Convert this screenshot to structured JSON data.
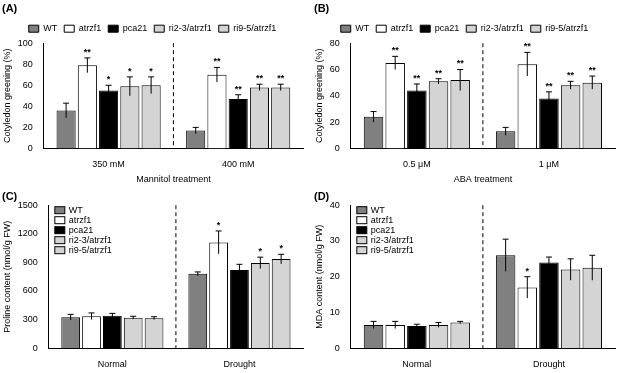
{
  "chart_data": [
    {
      "type": "bar",
      "title": "(A)",
      "xlabel": "Mannitol treatment",
      "ylabel": "Cotyledon greening (%)",
      "categories": [
        "350 mM",
        "400 mM"
      ],
      "series": [
        {
          "name": "WT",
          "color": "#808080",
          "values": [
            36,
            17
          ],
          "errors": [
            7,
            3
          ],
          "annotations": [
            null,
            null
          ]
        },
        {
          "name": "atrzf1",
          "color": "#ffffff",
          "values": [
            79,
            70
          ],
          "errors": [
            7,
            7
          ],
          "annotations": [
            "**",
            "**"
          ]
        },
        {
          "name": "pca21",
          "color": "#000000",
          "values": [
            55,
            47
          ],
          "errors": [
            5,
            4
          ],
          "annotations": [
            "*",
            "**"
          ]
        },
        {
          "name": "ri2-3/atrzf1",
          "color": "#d4d4d4",
          "values": [
            59,
            58
          ],
          "errors": [
            9,
            3
          ],
          "annotations": [
            "*",
            "**"
          ]
        },
        {
          "name": "ri9-5/atrzf1",
          "color": "#d4d4d4",
          "values": [
            60,
            58
          ],
          "errors": [
            8,
            3
          ],
          "annotations": [
            "*",
            "**"
          ]
        }
      ],
      "ylim": [
        0,
        100
      ],
      "yticks": [
        0,
        20,
        40,
        60,
        80,
        100
      ],
      "grid": false,
      "legend": "top"
    },
    {
      "type": "bar",
      "title": "(B)",
      "xlabel": "ABA treatment",
      "ylabel": "Cotyledon greening (%)",
      "categories": [
        "0.5 μM",
        "1 μM"
      ],
      "series": [
        {
          "name": "WT",
          "color": "#808080",
          "values": [
            24,
            13
          ],
          "errors": [
            4,
            3
          ],
          "annotations": [
            null,
            null
          ]
        },
        {
          "name": "atrzf1",
          "color": "#ffffff",
          "values": [
            65,
            64
          ],
          "errors": [
            5,
            9
          ],
          "annotations": [
            "**",
            "**"
          ]
        },
        {
          "name": "pca21",
          "color": "#000000",
          "values": [
            44,
            38
          ],
          "errors": [
            5,
            5
          ],
          "annotations": [
            "**",
            "**"
          ]
        },
        {
          "name": "ri2-3/atrzf1",
          "color": "#d4d4d4",
          "values": [
            51,
            48
          ],
          "errors": [
            2,
            3
          ],
          "annotations": [
            "**",
            "**"
          ]
        },
        {
          "name": "ri9-5/atrzf1",
          "color": "#d4d4d4",
          "values": [
            52,
            50
          ],
          "errors": [
            8,
            5
          ],
          "annotations": [
            "**",
            "**"
          ]
        }
      ],
      "ylim": [
        0,
        80
      ],
      "yticks": [
        0,
        20,
        40,
        60,
        80
      ],
      "grid": false,
      "legend": "top"
    },
    {
      "type": "bar",
      "title": "(C)",
      "ylabel": "Proline content (nmol/g FW)",
      "categories": [
        "Normal",
        "Drought"
      ],
      "series": [
        {
          "name": "WT",
          "color": "#808080",
          "values": [
            325,
            780
          ],
          "errors": [
            30,
            20
          ],
          "annotations": [
            null,
            null
          ]
        },
        {
          "name": "atrzf1",
          "color": "#ffffff",
          "values": [
            335,
            1110
          ],
          "errors": [
            35,
            120
          ],
          "annotations": [
            null,
            "*"
          ]
        },
        {
          "name": "pca21",
          "color": "#000000",
          "values": [
            340,
            820
          ],
          "errors": [
            25,
            60
          ],
          "annotations": [
            null,
            null
          ]
        },
        {
          "name": "ri2-3/atrzf1",
          "color": "#d4d4d4",
          "values": [
            320,
            895
          ],
          "errors": [
            15,
            60
          ],
          "annotations": [
            null,
            "*"
          ]
        },
        {
          "name": "ri9-5/atrzf1",
          "color": "#d4d4d4",
          "values": [
            315,
            935
          ],
          "errors": [
            15,
            50
          ],
          "annotations": [
            null,
            "*"
          ]
        }
      ],
      "ylim": [
        0,
        1500
      ],
      "yticks": [
        0,
        300,
        600,
        900,
        1200,
        1500
      ],
      "grid": false,
      "legend": "top-left"
    },
    {
      "type": "bar",
      "title": "(D)",
      "ylabel": "MDA content (nmol/g FW)",
      "categories": [
        "Normal",
        "Drought"
      ],
      "series": [
        {
          "name": "WT",
          "color": "#808080",
          "values": [
            6.5,
            26
          ],
          "errors": [
            1,
            4.5
          ],
          "annotations": [
            null,
            null
          ]
        },
        {
          "name": "atrzf1",
          "color": "#ffffff",
          "values": [
            6.5,
            17
          ],
          "errors": [
            1,
            3
          ],
          "annotations": [
            null,
            "*"
          ]
        },
        {
          "name": "pca21",
          "color": "#000000",
          "values": [
            6.2,
            24
          ],
          "errors": [
            0.5,
            1.5
          ],
          "annotations": [
            null,
            null
          ]
        },
        {
          "name": "ri2-3/atrzf1",
          "color": "#d4d4d4",
          "values": [
            6.5,
            22
          ],
          "errors": [
            0.7,
            3
          ],
          "annotations": [
            null,
            null
          ]
        },
        {
          "name": "ri9-5/atrzf1",
          "color": "#d4d4d4",
          "values": [
            7.2,
            22.5
          ],
          "errors": [
            0.3,
            3.5
          ],
          "annotations": [
            null,
            null
          ]
        }
      ],
      "ylim": [
        0,
        40
      ],
      "yticks": [
        0,
        10,
        20,
        30,
        40
      ],
      "grid": false,
      "legend": "top-left"
    }
  ]
}
